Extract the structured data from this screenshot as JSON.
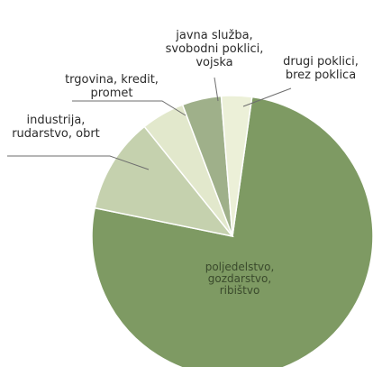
{
  "chart_data": {
    "type": "pie",
    "title": "",
    "series": [
      {
        "slices": [
          {
            "label": [
              "poljedelstvo,",
              "gozdarstvo,",
              "ribištvo"
            ],
            "value": 76.0,
            "color": "#7e9a63"
          },
          {
            "label": [
              "industrija,",
              "rudarstvo, obrt"
            ],
            "value": 11.0,
            "color": "#c5d1ae"
          },
          {
            "label": [
              "trgovina, kredit,",
              "promet"
            ],
            "value": 5.0,
            "color": "#e2e8cc"
          },
          {
            "label": [
              "javna služba,",
              "svobodni poklici,",
              "vojska"
            ],
            "value": 4.5,
            "color": "#9fb08a"
          },
          {
            "label": [
              "drugi poklici,",
              "brez poklica"
            ],
            "value": 3.5,
            "color": "#ecf0d8"
          }
        ]
      }
    ],
    "labels_outside": true,
    "leader_lines": true,
    "legend": "none"
  }
}
